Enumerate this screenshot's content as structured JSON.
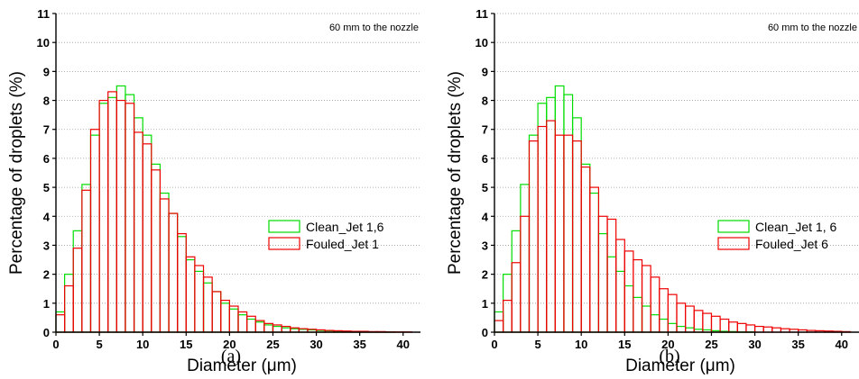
{
  "chart_data": [
    {
      "type": "bar",
      "subtitle": "(a)",
      "annotation": "60 mm to the nozzle",
      "xlabel": "Diameter (μm)",
      "ylabel": "Percentage of droplets (%)",
      "xlim": [
        0,
        42
      ],
      "ylim": [
        0,
        11
      ],
      "xticks": [
        0,
        5,
        10,
        15,
        20,
        25,
        30,
        35,
        40
      ],
      "yticks": [
        0,
        1,
        2,
        3,
        4,
        5,
        6,
        7,
        8,
        9,
        10,
        11
      ],
      "grid": "horizontal dotted",
      "legend_position": "right",
      "bin_width": 1,
      "x": [
        0.5,
        1.5,
        2.5,
        3.5,
        4.5,
        5.5,
        6.5,
        7.5,
        8.5,
        9.5,
        10.5,
        11.5,
        12.5,
        13.5,
        14.5,
        15.5,
        16.5,
        17.5,
        18.5,
        19.5,
        20.5,
        21.5,
        22.5,
        23.5,
        24.5,
        25.5,
        26.5,
        27.5,
        28.5,
        29.5,
        30.5,
        31.5,
        32.5,
        33.5,
        34.5,
        35.5,
        36.5,
        37.5,
        38.5,
        39.5,
        40.5
      ],
      "series": [
        {
          "name": "Clean_Jet 1,6",
          "color": "#00dd00",
          "values": [
            0.7,
            2.0,
            3.5,
            5.1,
            6.8,
            7.9,
            8.1,
            8.5,
            8.2,
            7.4,
            6.8,
            5.8,
            4.8,
            4.1,
            3.3,
            2.5,
            2.1,
            1.7,
            1.4,
            1.0,
            0.8,
            0.6,
            0.45,
            0.35,
            0.25,
            0.2,
            0.15,
            0.12,
            0.1,
            0.08,
            0.06,
            0.05,
            0.04,
            0.03,
            0.02,
            0.02,
            0.01,
            0.01,
            0.01,
            0.0,
            0.0
          ]
        },
        {
          "name": "Fouled_Jet 1",
          "color": "#ee0000",
          "values": [
            0.6,
            1.6,
            2.9,
            4.9,
            7.0,
            8.0,
            8.3,
            8.0,
            7.9,
            6.9,
            6.5,
            5.6,
            4.6,
            4.1,
            3.4,
            2.6,
            2.3,
            1.9,
            1.4,
            1.1,
            0.9,
            0.7,
            0.55,
            0.4,
            0.3,
            0.25,
            0.2,
            0.15,
            0.12,
            0.1,
            0.08,
            0.06,
            0.05,
            0.04,
            0.03,
            0.03,
            0.02,
            0.02,
            0.01,
            0.01,
            0.01
          ]
        }
      ]
    },
    {
      "type": "bar",
      "subtitle": "(b)",
      "annotation": "60 mm to the nozzle",
      "xlabel": "Diameter (μm)",
      "ylabel": "Percentage of droplets (%)",
      "xlim": [
        0,
        42
      ],
      "ylim": [
        0,
        11
      ],
      "xticks": [
        0,
        5,
        10,
        15,
        20,
        25,
        30,
        35,
        40
      ],
      "yticks": [
        0,
        1,
        2,
        3,
        4,
        5,
        6,
        7,
        8,
        9,
        10,
        11
      ],
      "grid": "horizontal dotted",
      "legend_position": "right",
      "bin_width": 1,
      "x": [
        0.5,
        1.5,
        2.5,
        3.5,
        4.5,
        5.5,
        6.5,
        7.5,
        8.5,
        9.5,
        10.5,
        11.5,
        12.5,
        13.5,
        14.5,
        15.5,
        16.5,
        17.5,
        18.5,
        19.5,
        20.5,
        21.5,
        22.5,
        23.5,
        24.5,
        25.5,
        26.5,
        27.5,
        28.5,
        29.5,
        30.5,
        31.5,
        32.5,
        33.5,
        34.5,
        35.5,
        36.5,
        37.5,
        38.5,
        39.5,
        40.5
      ],
      "series": [
        {
          "name": "Clean_Jet 1, 6",
          "color": "#00dd00",
          "values": [
            0.7,
            2.0,
            3.5,
            5.1,
            6.8,
            7.9,
            8.1,
            8.5,
            8.2,
            7.4,
            5.8,
            4.8,
            3.4,
            2.6,
            2.1,
            1.6,
            1.2,
            0.9,
            0.6,
            0.45,
            0.3,
            0.2,
            0.15,
            0.1,
            0.08,
            0.05,
            0.03,
            0.02,
            0.01,
            0.01,
            0.0,
            0.0,
            0.0,
            0.0,
            0.0,
            0.0,
            0.0,
            0.0,
            0.0,
            0.0,
            0.0
          ]
        },
        {
          "name": "Fouled_Jet 6",
          "color": "#ee0000",
          "values": [
            0.4,
            1.1,
            2.4,
            4.0,
            6.6,
            7.1,
            7.3,
            6.8,
            6.8,
            6.6,
            5.7,
            5.0,
            4.0,
            3.9,
            3.2,
            2.8,
            2.5,
            2.3,
            1.9,
            1.5,
            1.3,
            1.0,
            0.9,
            0.75,
            0.65,
            0.55,
            0.45,
            0.35,
            0.3,
            0.25,
            0.2,
            0.18,
            0.15,
            0.12,
            0.1,
            0.08,
            0.06,
            0.05,
            0.04,
            0.03,
            0.02
          ]
        }
      ]
    }
  ]
}
